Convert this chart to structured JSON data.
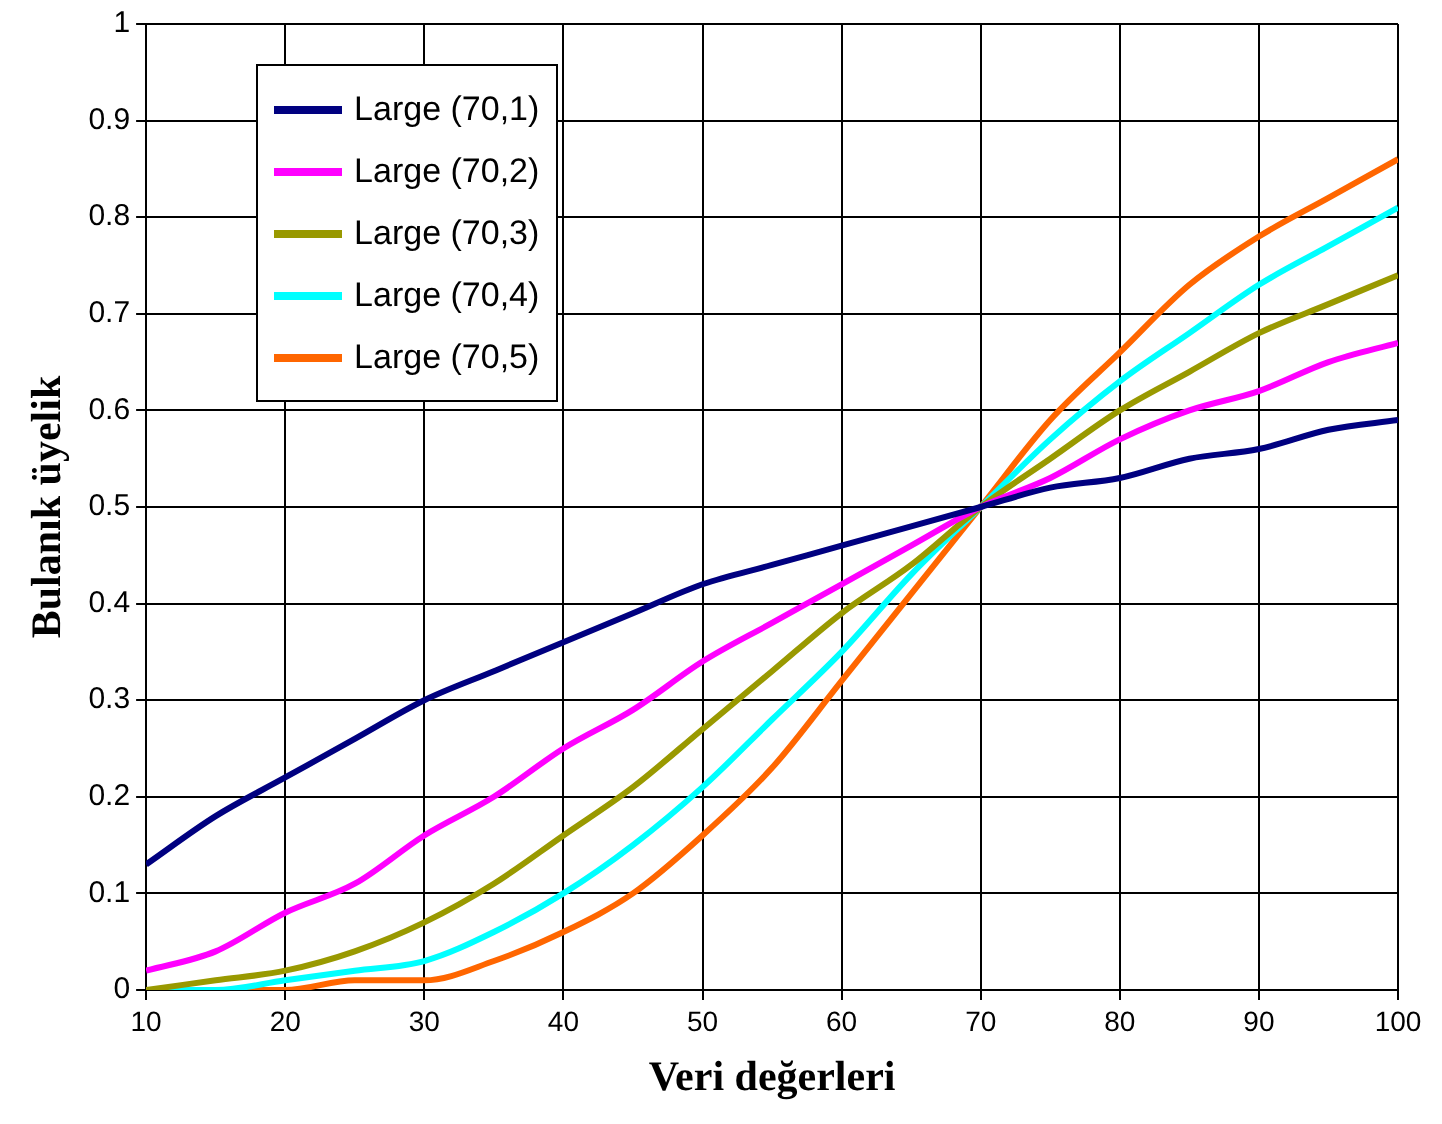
{
  "chart_data": {
    "type": "line",
    "xlabel": "Veri değerleri",
    "ylabel": "Bulanık üyelik",
    "x": [
      10,
      15,
      20,
      25,
      30,
      35,
      40,
      45,
      50,
      55,
      60,
      65,
      70,
      75,
      80,
      85,
      90,
      95,
      100
    ],
    "series": [
      {
        "name": "Large (70,1)",
        "color": "#000080",
        "values": [
          0.13,
          0.18,
          0.22,
          0.26,
          0.3,
          0.33,
          0.36,
          0.39,
          0.42,
          0.44,
          0.46,
          0.48,
          0.5,
          0.52,
          0.53,
          0.55,
          0.56,
          0.58,
          0.59
        ]
      },
      {
        "name": "Large (70,2)",
        "color": "#ff00ff",
        "values": [
          0.02,
          0.04,
          0.08,
          0.11,
          0.16,
          0.2,
          0.25,
          0.29,
          0.34,
          0.38,
          0.42,
          0.46,
          0.5,
          0.53,
          0.57,
          0.6,
          0.62,
          0.65,
          0.67
        ]
      },
      {
        "name": "Large (70,3)",
        "color": "#999900",
        "values": [
          0,
          0.01,
          0.02,
          0.04,
          0.07,
          0.11,
          0.16,
          0.21,
          0.27,
          0.33,
          0.39,
          0.44,
          0.5,
          0.55,
          0.6,
          0.64,
          0.68,
          0.71,
          0.74
        ]
      },
      {
        "name": "Large (70,4)",
        "color": "#00ffff",
        "values": [
          0,
          0,
          0.01,
          0.02,
          0.03,
          0.06,
          0.1,
          0.15,
          0.21,
          0.28,
          0.35,
          0.43,
          0.5,
          0.57,
          0.63,
          0.68,
          0.73,
          0.77,
          0.81
        ]
      },
      {
        "name": "Large (70,5)",
        "color": "#ff6600",
        "values": [
          0,
          0,
          0,
          0.01,
          0.01,
          0.03,
          0.06,
          0.1,
          0.16,
          0.23,
          0.32,
          0.41,
          0.5,
          0.59,
          0.66,
          0.73,
          0.78,
          0.82,
          0.86
        ]
      }
    ],
    "xlim": [
      10,
      100
    ],
    "xticks": [
      10,
      20,
      30,
      40,
      50,
      60,
      70,
      80,
      90,
      100
    ],
    "ylim": [
      0,
      1
    ],
    "yticks": [
      0,
      0.1,
      0.2,
      0.3,
      0.4,
      0.5,
      0.6,
      0.7,
      0.8,
      0.9,
      1
    ],
    "grid": true,
    "legend": "top left",
    "marker": "none",
    "line_style": "solid"
  }
}
